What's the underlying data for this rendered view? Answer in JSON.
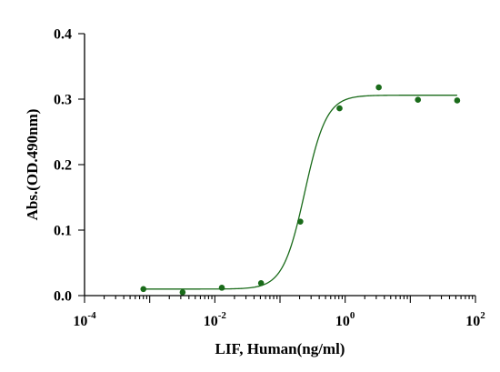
{
  "chart_data": {
    "type": "scatter",
    "xlabel": "LIF, Human(ng/ml)",
    "ylabel": "Abs.(OD.490nm)",
    "x_scale": "log10",
    "xlim": [
      0.0001,
      100
    ],
    "ylim": [
      0,
      0.4
    ],
    "x_ticks": [
      {
        "value": 0.0001,
        "base": "10",
        "exp": "-4"
      },
      {
        "value": 0.01,
        "base": "10",
        "exp": "-2"
      },
      {
        "value": 1,
        "base": "10",
        "exp": "0"
      },
      {
        "value": 100,
        "base": "10",
        "exp": "2"
      }
    ],
    "y_ticks": [
      {
        "value": 0,
        "label": "0.0"
      },
      {
        "value": 0.1,
        "label": "0.1"
      },
      {
        "value": 0.2,
        "label": "0.2"
      },
      {
        "value": 0.3,
        "label": "0.3"
      },
      {
        "value": 0.4,
        "label": "0.4"
      }
    ],
    "grid": false,
    "legend": "none",
    "series": [
      {
        "color": "#1a6b1a",
        "points": [
          {
            "x": 0.0008,
            "y": 0.01
          },
          {
            "x": 0.0032,
            "y": 0.005
          },
          {
            "x": 0.0128,
            "y": 0.012
          },
          {
            "x": 0.0512,
            "y": 0.019
          },
          {
            "x": 0.205,
            "y": 0.113
          },
          {
            "x": 0.82,
            "y": 0.286
          },
          {
            "x": 3.28,
            "y": 0.318
          },
          {
            "x": 13.1,
            "y": 0.299
          },
          {
            "x": 52.4,
            "y": 0.298
          }
        ],
        "fit": {
          "model": "4PL",
          "bottom": 0.01,
          "top": 0.306,
          "ec50": 0.24,
          "hill": 2.6
        }
      }
    ]
  }
}
